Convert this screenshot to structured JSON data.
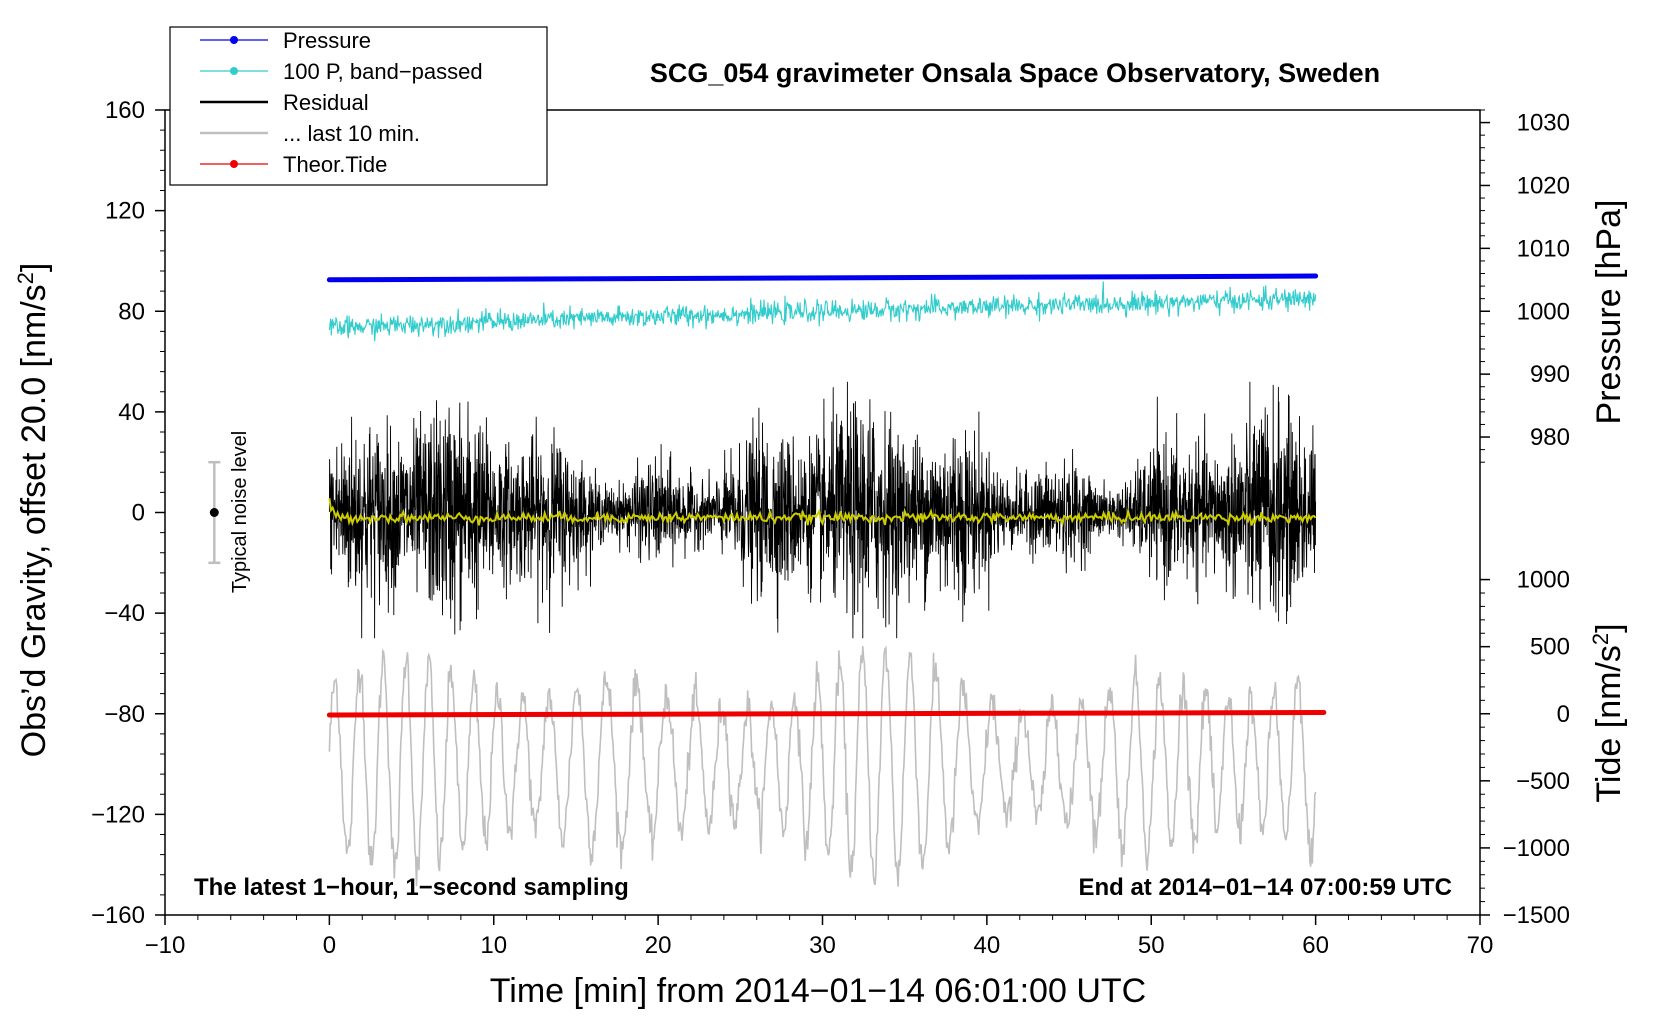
{
  "chart_data": {
    "type": "line",
    "title": "SCG_054 gravimeter Onsala Space Observatory, Sweden",
    "xlabel": "Time [min] from 2014−01−14 06:01:00 UTC",
    "ylabel_left": "Obs’d Gravity, offset 20.0 [nm/s",
    "ylabel_left_sup": "2",
    "ylabel_left_end": "]",
    "ylabel_right_pressure": "Pressure [hPa]",
    "ylabel_right_tide": "Tide [nm/s",
    "ylabel_right_tide_sup": "2",
    "ylabel_right_tide_end": "]",
    "xlim": [
      -10,
      70
    ],
    "ylim_left": [
      -160,
      160
    ],
    "x_ticks": [
      -10,
      0,
      10,
      20,
      30,
      40,
      50,
      60,
      70
    ],
    "x_tick_labels": [
      "−10",
      "0",
      "10",
      "20",
      "30",
      "40",
      "50",
      "60",
      "70"
    ],
    "y_left_ticks": [
      160,
      120,
      80,
      40,
      0,
      -40,
      -80,
      -120,
      -160
    ],
    "y_left_tick_labels": [
      "160",
      "120",
      "80",
      "40",
      "0",
      "−40",
      "−80",
      "−120",
      "−160"
    ],
    "pressure_ticks": [
      1030,
      1020,
      1010,
      1000,
      990,
      980
    ],
    "pressure_tick_labels": [
      "1030",
      "1020",
      "1010",
      "1000",
      "990",
      "980"
    ],
    "pressure_axis_map": {
      "value_at_plus80": 1000,
      "hpa_per_left_unit": 0.4
    },
    "tide_ticks": [
      1000,
      500,
      0,
      -500,
      -1000,
      -1500
    ],
    "tide_tick_labels": [
      "1000",
      "500",
      "0",
      "−500",
      "−1000",
      "−1500"
    ],
    "tide_axis_map": {
      "value_at_minus80": 0,
      "nms2_per_left_unit": 18.75
    },
    "legend": [
      {
        "label": "Pressure",
        "color": "#0000ee",
        "marker": true
      },
      {
        "label": "100 P, band−passed",
        "color": "#33cccc",
        "marker": true
      },
      {
        "label": "Residual",
        "color": "#000000",
        "marker": false
      },
      {
        "label": "... last 10 min.",
        "color": "#bfbfbf",
        "marker": false
      },
      {
        "label": "Theor.Tide",
        "color": "#ee0000",
        "marker": true
      }
    ],
    "legend_position": "top-left",
    "series": [
      {
        "name": "Pressure",
        "color": "#0000ee",
        "x_range": [
          0,
          60
        ],
        "y_start": 92.5,
        "y_end": 94
      },
      {
        "name": "100 P, band-passed",
        "color": "#33cccc",
        "x_range": [
          0,
          60
        ],
        "y_start": 73,
        "y_end": 85,
        "noise_amplitude": 3
      },
      {
        "name": "Residual",
        "color": "#000000",
        "x_range": [
          0,
          60
        ],
        "y_center": 0,
        "typical_range": [
          -40,
          40
        ],
        "max": 52,
        "min": -50
      },
      {
        "name": "Residual smoothed",
        "color": "#cccc00",
        "x_range": [
          0,
          60
        ],
        "y_value": -2
      },
      {
        "name": "... last 10 min.",
        "color": "#bfbfbf",
        "x_range": [
          0,
          60
        ],
        "y_center": -100,
        "range": [
          -150,
          -52
        ]
      },
      {
        "name": "Theor.Tide",
        "color": "#ee0000",
        "x_range": [
          0,
          60.5
        ],
        "y_start": -80.5,
        "y_end": -79.5
      }
    ],
    "noise_bar": {
      "label": "Typical noise level",
      "x": -7,
      "y": 0,
      "low": -20,
      "high": 20
    },
    "annotations": {
      "bottom_left": "The latest 1−hour, 1−second sampling",
      "bottom_right": "End at 2014−01−14 07:00:59 UTC"
    }
  }
}
